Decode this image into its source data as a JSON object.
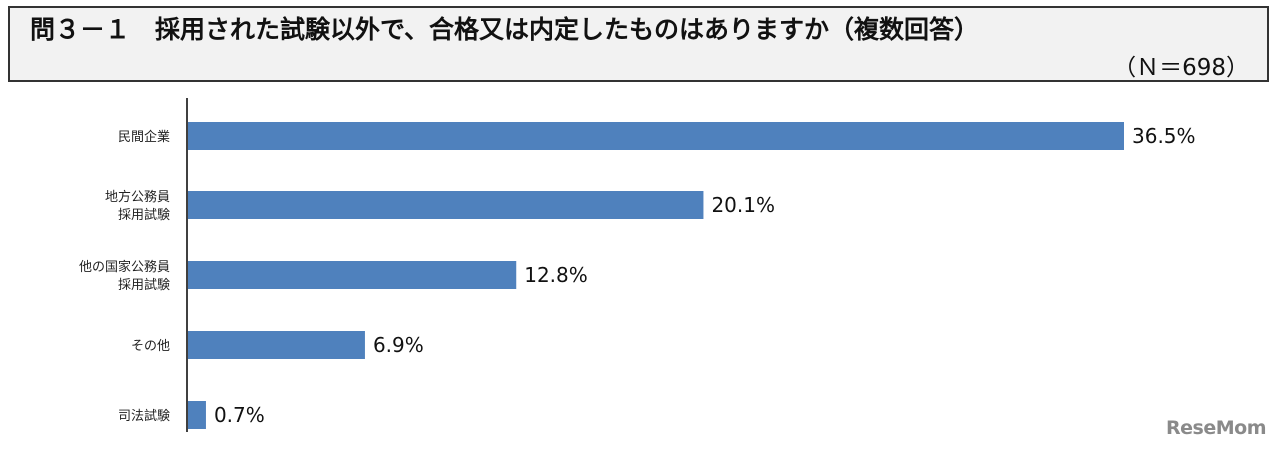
{
  "header": {
    "title": "問３－１　採用された試験以外で、合格又は内定したものはありますか（複数回答）",
    "sample_size": "（Ｎ＝698）"
  },
  "watermark": "ReseMom",
  "colors": {
    "bar": "#4f81bd",
    "axis": "#000000"
  },
  "chart_data": {
    "type": "bar",
    "orientation": "horizontal",
    "categories": [
      [
        "民間企業"
      ],
      [
        "地方公務員",
        "採用試験"
      ],
      [
        "他の国家公務員",
        "採用試験"
      ],
      [
        "その他"
      ],
      [
        "司法試験"
      ]
    ],
    "values": [
      36.5,
      20.1,
      12.8,
      6.9,
      0.7
    ],
    "value_labels": [
      "36.5%",
      "20.1%",
      "12.8%",
      "6.9%",
      "0.7%"
    ],
    "xlim": [
      0,
      36.5
    ],
    "grid": false,
    "legend": "none"
  }
}
